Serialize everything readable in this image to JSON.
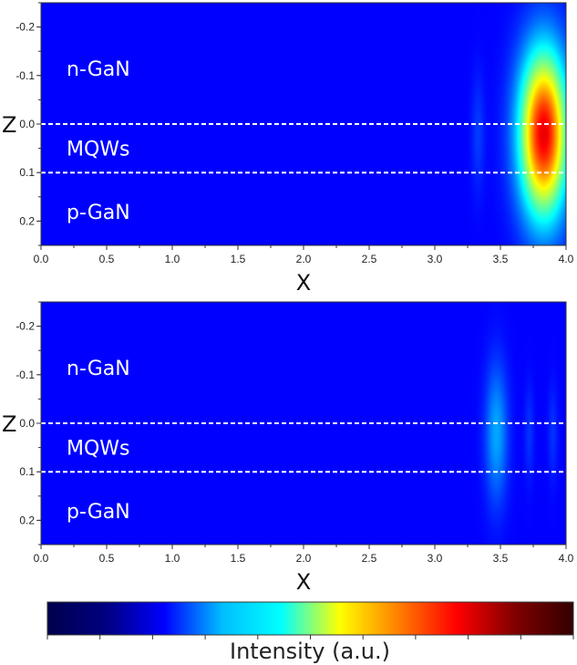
{
  "chart_data": [
    {
      "type": "heatmap",
      "panel": "top",
      "xlabel": "X",
      "ylabel": "Z",
      "xlim": [
        0.0,
        4.0
      ],
      "ylim": [
        -0.25,
        0.25
      ],
      "y_inverted": true,
      "x_ticks": [
        "0.0",
        "0.5",
        "1.0",
        "1.5",
        "2.0",
        "2.5",
        "3.0",
        "3.5",
        "4.0"
      ],
      "y_ticks": [
        "-0.2",
        "-0.1",
        "0.0",
        "0.1",
        "0.2"
      ],
      "x_tick_values": [
        0.0,
        0.5,
        1.0,
        1.5,
        2.0,
        2.5,
        3.0,
        3.5,
        4.0
      ],
      "y_tick_values": [
        -0.2,
        -0.1,
        0.0,
        0.1,
        0.2
      ],
      "boundaries_z": [
        0.0,
        0.1
      ],
      "regions": [
        {
          "label": "n-GaN",
          "z": -0.115
        },
        {
          "label": "MQWs",
          "z": 0.05
        },
        {
          "label": "p-GaN",
          "z": 0.18
        }
      ],
      "hotspots": [
        {
          "x": 3.83,
          "z": 0.02,
          "sx": 0.13,
          "sz": 0.12,
          "intensity": 0.93
        },
        {
          "x": 3.33,
          "z": 0.02,
          "sx": 0.035,
          "sz": 0.085,
          "intensity": 0.07
        }
      ]
    },
    {
      "type": "heatmap",
      "panel": "bottom",
      "xlabel": "X",
      "ylabel": "Z",
      "xlim": [
        0.0,
        4.0
      ],
      "ylim": [
        -0.25,
        0.25
      ],
      "y_inverted": true,
      "x_ticks": [
        "0.0",
        "0.5",
        "1.0",
        "1.5",
        "2.0",
        "2.5",
        "3.0",
        "3.5",
        "4.0"
      ],
      "y_ticks": [
        "-0.2",
        "-0.1",
        "0.0",
        "0.1",
        "0.2"
      ],
      "x_tick_values": [
        0.0,
        0.5,
        1.0,
        1.5,
        2.0,
        2.5,
        3.0,
        3.5,
        4.0
      ],
      "y_tick_values": [
        -0.2,
        -0.1,
        0.0,
        0.1,
        0.2
      ],
      "boundaries_z": [
        0.0,
        0.1
      ],
      "regions": [
        {
          "label": "n-GaN",
          "z": -0.115
        },
        {
          "label": "MQWs",
          "z": 0.05
        },
        {
          "label": "p-GaN",
          "z": 0.18
        }
      ],
      "hotspots": [
        {
          "x": 3.47,
          "z": 0.02,
          "sx": 0.06,
          "sz": 0.1,
          "intensity": 0.2
        },
        {
          "x": 3.72,
          "z": 0.02,
          "sx": 0.025,
          "sz": 0.07,
          "intensity": 0.06
        },
        {
          "x": 3.9,
          "z": 0.02,
          "sx": 0.025,
          "sz": 0.07,
          "intensity": 0.06
        }
      ]
    }
  ],
  "colorbar": {
    "label": "Intensity (a.u.)",
    "colors": [
      "#00004d",
      "#000080",
      "#0000ff",
      "#00bfff",
      "#00ffff",
      "#ffff00",
      "#ff8000",
      "#ff0000",
      "#800000",
      "#330000"
    ]
  }
}
